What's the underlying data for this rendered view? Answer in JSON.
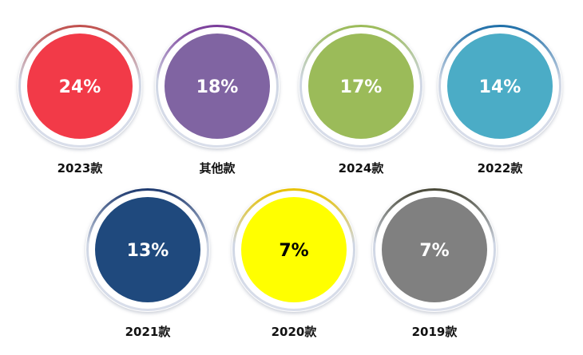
{
  "chart_data": {
    "type": "pie",
    "title": "",
    "unit": "%",
    "items": [
      {
        "label": "2023款",
        "value": 24,
        "display": "24%",
        "color": "#F23A48",
        "text_color": "#ffffff",
        "ring_color": "#C0504D"
      },
      {
        "label": "其他款",
        "value": 18,
        "display": "18%",
        "color": "#8064A2",
        "text_color": "#ffffff",
        "ring_color": "#7A3D9A"
      },
      {
        "label": "2024款",
        "value": 17,
        "display": "17%",
        "color": "#9BBB59",
        "text_color": "#ffffff",
        "ring_color": "#9BBB59"
      },
      {
        "label": "2022款",
        "value": 14,
        "display": "14%",
        "color": "#4BACC6",
        "text_color": "#ffffff",
        "ring_color": "#1F6FA8"
      },
      {
        "label": "2021款",
        "value": 13,
        "display": "13%",
        "color": "#1F497D",
        "text_color": "#ffffff",
        "ring_color": "#1F3B70"
      },
      {
        "label": "2020款",
        "value": 7,
        "display": "7%",
        "color": "#FFFF00",
        "text_color": "#000000",
        "ring_color": "#E8C200"
      },
      {
        "label": "2019款",
        "value": 7,
        "display": "7%",
        "color": "#808080",
        "text_color": "#ffffff",
        "ring_color": "#4A4A3A"
      }
    ]
  }
}
